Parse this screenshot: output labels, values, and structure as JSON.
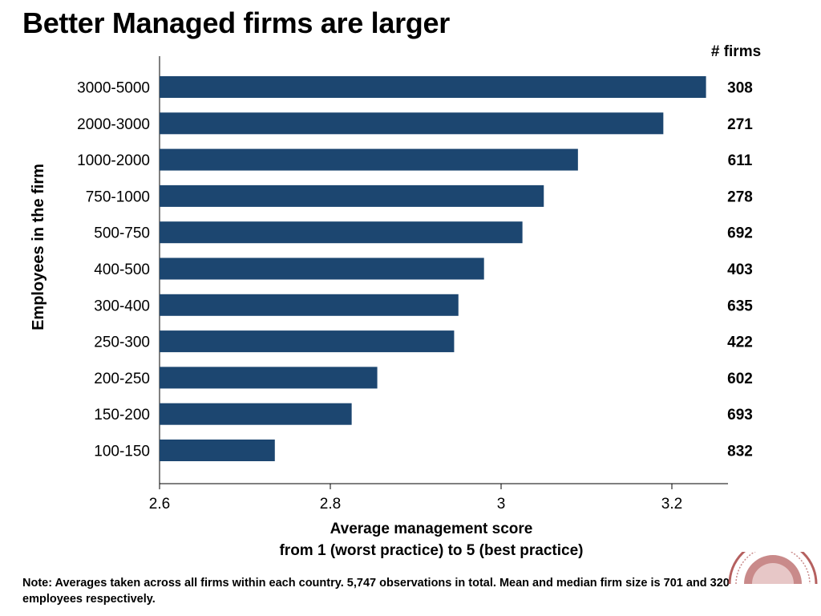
{
  "title": "Better Managed firms are larger",
  "note": "Note: Averages taken across all firms within each country. 5,747 observations in total. Mean and median firm size is 701 and 320 employees respectively.",
  "chart_data": {
    "type": "bar",
    "orientation": "horizontal",
    "categories": [
      "3000-5000",
      "2000-3000",
      "1000-2000",
      "750-1000",
      "500-750",
      "400-500",
      "300-400",
      "250-300",
      "200-250",
      "150-200",
      "100-150"
    ],
    "values": [
      3.24,
      3.19,
      3.09,
      3.05,
      3.025,
      2.98,
      2.95,
      2.945,
      2.855,
      2.825,
      2.735
    ],
    "firm_counts": [
      "308",
      "271",
      "611",
      "278",
      "692",
      "403",
      "635",
      "422",
      "602",
      "693",
      "832"
    ],
    "counts_header": "# firms",
    "xlabel_line1": "Average management score",
    "xlabel_line2": "from 1 (worst practice) to 5 (best practice)",
    "ylabel": "Employees in the firm",
    "xlim": [
      2.6,
      3.265
    ],
    "x_ticks": [
      2.6,
      2.8,
      3.0,
      3.2
    ],
    "x_tick_labels": [
      "2.6",
      "2.8",
      "3",
      "3.2"
    ],
    "bar_color": "#1c4670",
    "grid": false
  }
}
